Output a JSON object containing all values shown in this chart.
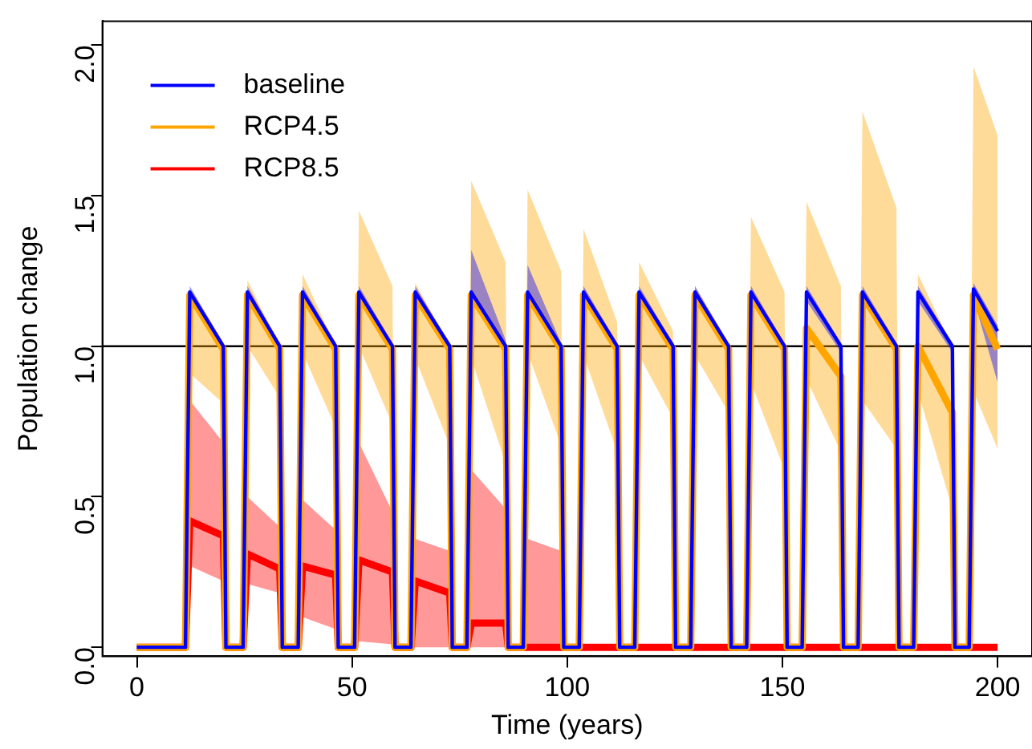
{
  "chart_data": {
    "type": "line",
    "xlabel": "Time (years)",
    "ylabel": "Population change",
    "x": [
      0,
      11.3,
      12.3,
      20.1,
      20.7,
      24.7,
      25.7,
      33.2,
      33.8,
      37.5,
      38.5,
      46.2,
      46.8,
      50.6,
      51.6,
      59.4,
      60,
      63.7,
      64.7,
      72.7,
      73.3,
      76.7,
      77.7,
      85.7,
      86.3,
      89.8,
      90.8,
      98.6,
      99.2,
      102.8,
      103.8,
      111.6,
      112.2,
      115.7,
      116.7,
      124.6,
      125.2,
      128.7,
      129.7,
      137.5,
      138.1,
      141.7,
      142.7,
      150.5,
      151.1,
      154.6,
      155.6,
      163.6,
      164.2,
      167.6,
      168.6,
      176.5,
      177.1,
      180.5,
      181.5,
      189.5,
      190.1,
      193.4,
      194.4,
      200
    ],
    "series": [
      {
        "name": "baseline",
        "color": "#0000ff",
        "values": [
          0,
          0,
          1.18,
          1.0,
          0,
          0,
          1.18,
          1.0,
          0,
          0,
          1.18,
          1.0,
          0,
          0,
          1.18,
          1.0,
          0,
          0,
          1.18,
          1.0,
          0,
          0,
          1.18,
          1.0,
          0,
          0,
          1.18,
          1.0,
          0,
          0,
          1.18,
          1.0,
          0,
          0,
          1.18,
          1.0,
          0,
          0,
          1.18,
          1.0,
          0,
          0,
          1.18,
          1.0,
          0,
          0,
          1.18,
          1.0,
          0,
          0,
          1.18,
          1.0,
          0,
          0,
          1.18,
          1.0,
          0,
          0,
          1.19,
          1.05
        ],
        "upper": [
          0,
          0,
          1.2,
          1.01,
          0,
          0,
          1.2,
          1.01,
          0,
          0,
          1.2,
          1.01,
          0,
          0,
          1.2,
          1.01,
          0,
          0,
          1.2,
          1.01,
          0,
          0,
          1.32,
          1.02,
          0,
          0,
          1.27,
          1.01,
          0,
          0,
          1.2,
          1.01,
          0,
          0,
          1.2,
          1.01,
          0,
          0,
          1.2,
          1.01,
          0,
          0,
          1.2,
          1.01,
          0,
          0,
          1.2,
          1.01,
          0,
          0,
          1.2,
          1.01,
          0,
          0,
          1.2,
          1.01,
          0,
          0,
          1.21,
          1.07
        ],
        "lower": [
          0,
          0,
          1.15,
          0.98,
          0,
          0,
          1.15,
          0.98,
          0,
          0,
          1.15,
          0.98,
          0,
          0,
          1.15,
          0.98,
          0,
          0,
          1.15,
          0.98,
          0,
          0,
          1.15,
          0.98,
          0,
          0,
          1.15,
          0.98,
          0,
          0,
          1.15,
          0.98,
          0,
          0,
          1.15,
          0.98,
          0,
          0,
          1.15,
          0.98,
          0,
          0,
          1.15,
          0.98,
          0,
          0,
          1.15,
          0.98,
          0,
          0,
          1.15,
          0.98,
          0,
          0,
          1.15,
          0.98,
          0,
          0,
          1.16,
          0.88
        ]
      },
      {
        "name": "RCP4.5",
        "color": "#ffa500",
        "values": [
          0,
          0,
          1.17,
          0.99,
          0,
          0,
          1.17,
          0.99,
          0,
          0,
          1.17,
          0.99,
          0,
          0,
          1.17,
          0.99,
          0,
          0,
          1.17,
          0.99,
          0,
          0,
          1.17,
          0.99,
          0,
          0,
          1.17,
          0.99,
          0,
          0,
          1.17,
          0.99,
          0,
          0,
          1.17,
          0.99,
          0,
          0,
          1.17,
          0.99,
          0,
          0,
          1.17,
          0.99,
          0,
          0,
          1.06,
          0.9,
          0,
          0,
          1.17,
          0.99,
          0,
          0,
          1.0,
          0.78,
          0,
          0,
          1.17,
          0.99
        ],
        "upper": [
          0,
          0,
          1.18,
          1.0,
          0,
          0,
          1.22,
          1.0,
          0,
          0,
          1.24,
          1.0,
          0,
          0,
          1.45,
          1.2,
          0,
          0,
          1.21,
          1.0,
          0,
          0,
          1.55,
          1.28,
          0,
          0,
          1.52,
          1.25,
          0,
          0,
          1.39,
          1.08,
          0,
          0,
          1.28,
          1.05,
          0,
          0,
          1.2,
          1.0,
          0,
          0,
          1.43,
          1.18,
          0,
          0,
          1.48,
          1.2,
          0,
          0,
          1.78,
          1.46,
          0,
          0,
          1.24,
          1.0,
          0,
          0,
          1.93,
          1.7
        ],
        "lower": [
          0,
          0,
          0.91,
          0.81,
          0,
          0,
          1.0,
          0.83,
          0,
          0,
          0.98,
          0.73,
          0,
          0,
          1.0,
          0.74,
          0,
          0,
          0.96,
          0.67,
          0,
          0,
          0.96,
          0.61,
          0,
          0,
          0.98,
          0.67,
          0,
          0,
          0.97,
          0.65,
          0,
          0,
          0.97,
          0.76,
          0,
          0,
          0.97,
          0.78,
          0,
          0,
          0.88,
          0.59,
          0,
          0,
          0.89,
          0.65,
          0,
          0,
          0.82,
          0.66,
          0,
          0,
          0.85,
          0.46,
          0,
          0,
          0.85,
          0.66
        ]
      },
      {
        "name": "RCP8.5",
        "color": "#ff0000",
        "values": [
          0,
          0,
          0.42,
          0.37,
          0,
          0,
          0.31,
          0.26,
          0,
          0,
          0.27,
          0.24,
          0,
          0,
          0.29,
          0.25,
          0,
          0,
          0.22,
          0.18,
          0,
          0,
          0.08,
          0.08,
          0,
          0,
          0,
          0,
          0,
          0,
          0,
          0,
          0,
          0,
          0,
          0,
          0,
          0,
          0,
          0,
          0,
          0,
          0,
          0,
          0,
          0,
          0,
          0,
          0,
          0,
          0,
          0,
          0,
          0,
          0,
          0,
          0,
          0,
          0,
          0
        ],
        "upper": [
          0,
          0,
          0.82,
          0.68,
          0,
          0,
          0.5,
          0.4,
          0,
          0,
          0.49,
          0.39,
          0,
          0,
          0.68,
          0.45,
          0,
          0,
          0.36,
          0.32,
          0,
          0,
          0.59,
          0.46,
          0,
          0,
          0.36,
          0.32,
          0,
          0,
          0,
          0,
          0,
          0,
          0,
          0,
          0,
          0,
          0,
          0,
          0,
          0,
          0,
          0,
          0,
          0,
          0,
          0,
          0,
          0,
          0,
          0,
          0,
          0,
          0,
          0,
          0,
          0,
          0,
          0
        ],
        "lower": [
          0,
          0,
          0.27,
          0.22,
          0,
          0,
          0.21,
          0.18,
          0,
          0,
          0.1,
          0.06,
          0,
          0,
          0.02,
          0.01,
          0,
          0,
          0,
          0,
          0,
          0,
          0,
          0,
          0,
          0,
          0,
          0,
          0,
          0,
          0,
          0,
          0,
          0,
          0,
          0,
          0,
          0,
          0,
          0,
          0,
          0,
          0,
          0,
          0,
          0,
          0,
          0,
          0,
          0,
          0,
          0,
          0,
          0,
          0,
          0,
          0,
          0,
          0,
          0
        ]
      }
    ],
    "xlim": [
      -8,
      208
    ],
    "xticks": [
      0,
      50,
      100,
      150,
      200
    ],
    "ylim": [
      -0.03,
      2.08
    ],
    "yticks": [
      {
        "value": 0,
        "label": "0.0"
      },
      {
        "value": 0.5,
        "label": "0.5"
      },
      {
        "value": 1,
        "label": "1.0"
      },
      {
        "value": 1.5,
        "label": "1.5"
      },
      {
        "value": 2,
        "label": "2.0"
      }
    ],
    "ref_lines": [
      {
        "axis": "y",
        "value": 1,
        "color": "#000000"
      }
    ],
    "legend": "top left",
    "grid": false,
    "marker": "none",
    "line_style": "solid"
  }
}
